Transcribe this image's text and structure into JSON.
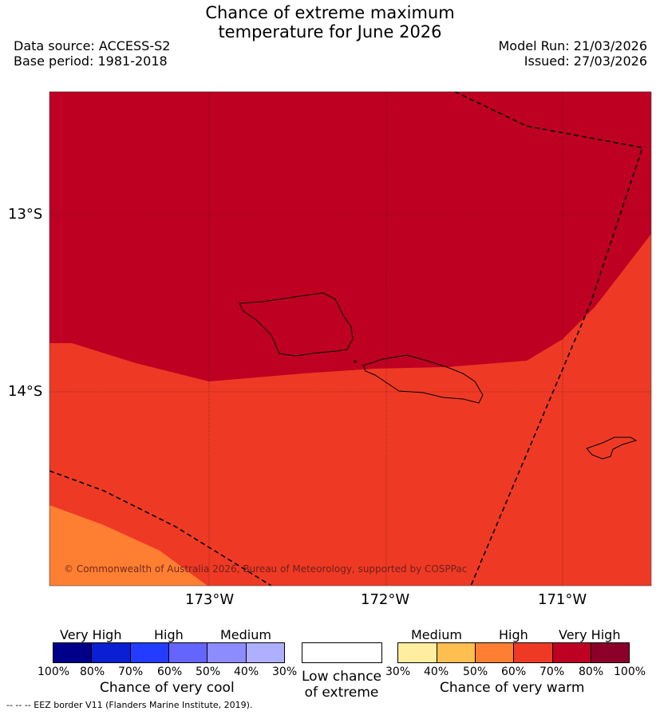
{
  "header": {
    "title_line1": "Chance of extreme maximum",
    "title_line2": "temperature for June 2026",
    "data_source": "Data source: ACCESS-S2",
    "base_period": "Base period: 1981-2018",
    "model_run": "Model Run: 21/03/2026",
    "issued": "Issued: 27/03/2026"
  },
  "map": {
    "lat_labels": [
      "13°S",
      "14°S"
    ],
    "lon_labels": [
      "173°W",
      "172°W",
      "171°W"
    ],
    "credit": "© Commonwealth of Australia 2026, Bureau of Meteorology, supported by COSPPac"
  },
  "legend": {
    "cool": {
      "headings": [
        "Very High",
        "High",
        "Medium"
      ],
      "colors": [
        "#00008b",
        "#0a1ed2",
        "#233cff",
        "#6464ff",
        "#8c8cff",
        "#afafff"
      ],
      "ticks": [
        "100%",
        "80%",
        "70%",
        "60%",
        "50%",
        "40%",
        "30%"
      ],
      "title": "Chance of very cool"
    },
    "low": {
      "line1": "Low chance",
      "line2": "of extreme"
    },
    "warm": {
      "headings": [
        "Medium",
        "High",
        "Very High"
      ],
      "colors": [
        "#ffeea0",
        "#ffbe50",
        "#ff7f32",
        "#ee3a24",
        "#be0022",
        "#8b0029"
      ],
      "ticks": [
        "30%",
        "40%",
        "50%",
        "60%",
        "70%",
        "80%",
        "100%"
      ],
      "title": "Chance of very warm"
    }
  },
  "footer": "--  --  -- EEZ border V11 (Flanders Marine Institute, 2019)."
}
